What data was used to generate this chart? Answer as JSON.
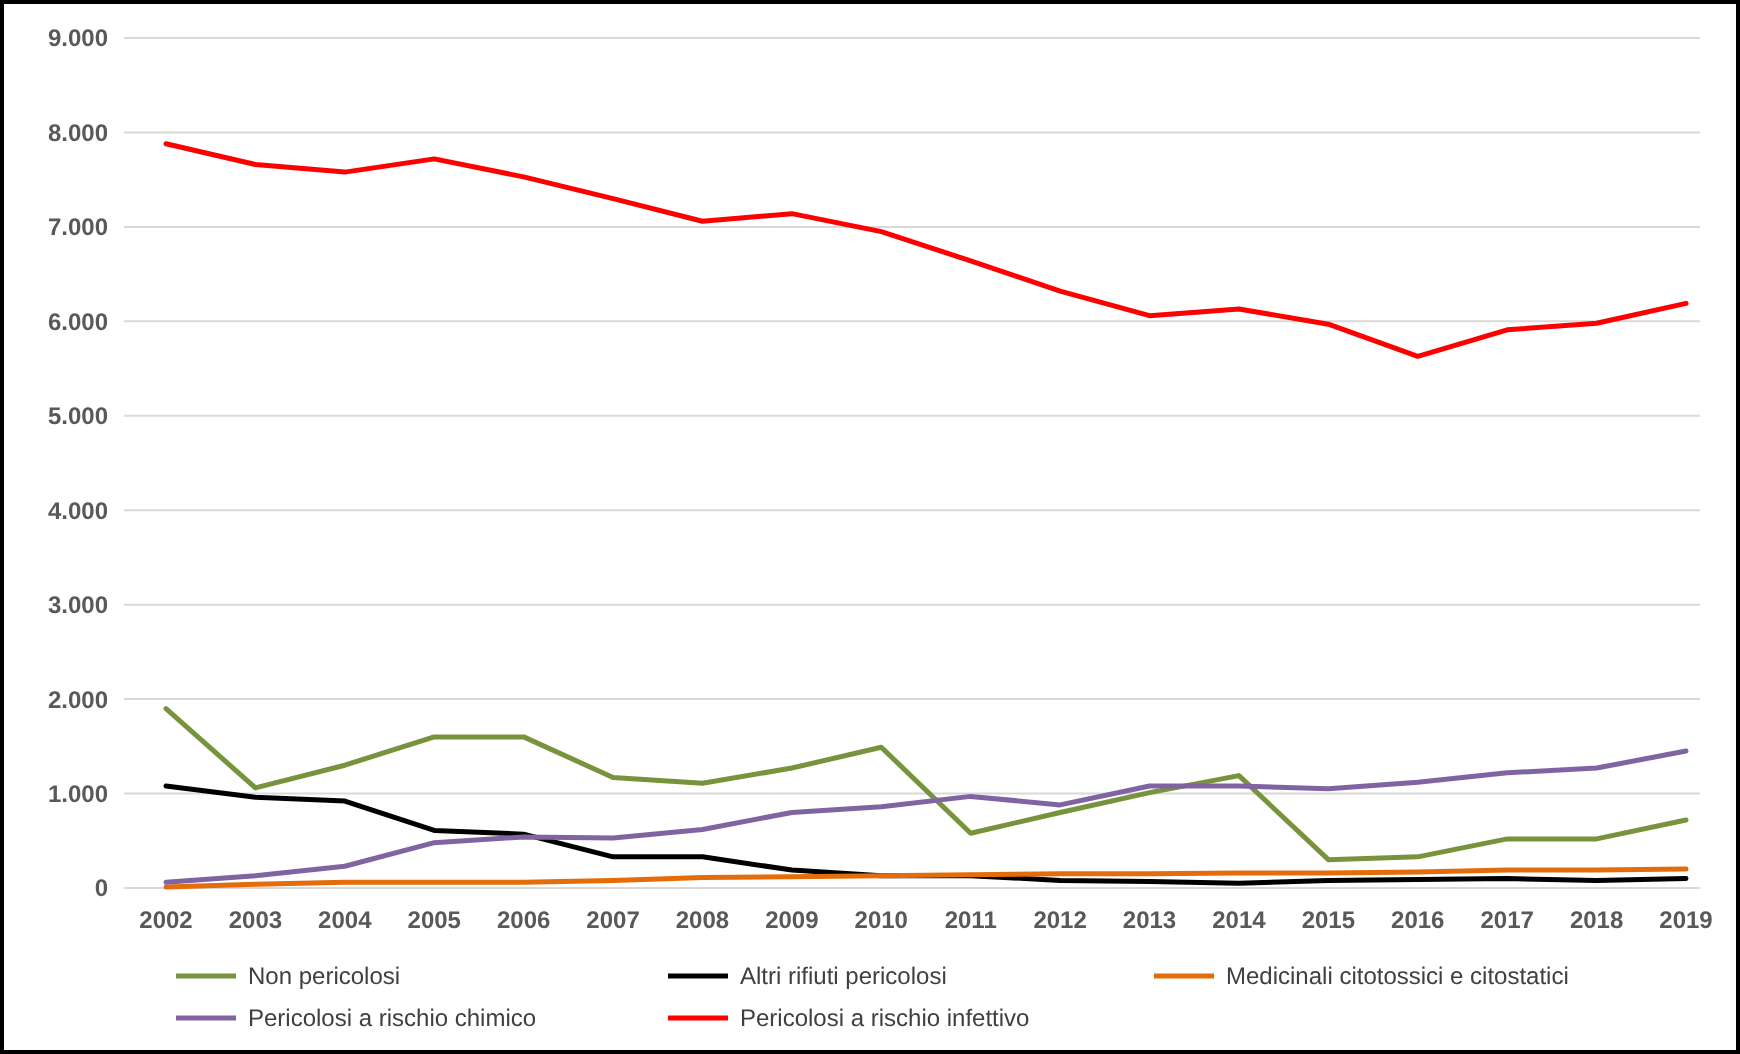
{
  "chart_data": {
    "type": "line",
    "categories": [
      "2002",
      "2003",
      "2004",
      "2005",
      "2006",
      "2007",
      "2008",
      "2009",
      "2010",
      "2011",
      "2012",
      "2013",
      "2014",
      "2015",
      "2016",
      "2017",
      "2018",
      "2019"
    ],
    "series": [
      {
        "name": "Non pericolosi",
        "color": "#77933c",
        "values": [
          1900,
          1060,
          1300,
          1600,
          1600,
          1170,
          1110,
          1270,
          1490,
          580,
          800,
          1010,
          1190,
          300,
          330,
          520,
          520,
          720
        ]
      },
      {
        "name": "Altri rifiuti pericolosi",
        "color": "#000000",
        "values": [
          1080,
          960,
          920,
          610,
          570,
          330,
          330,
          190,
          130,
          130,
          80,
          70,
          50,
          80,
          90,
          100,
          80,
          100
        ]
      },
      {
        "name": "Medicinali citotossici e citostatici",
        "color": "#e46c0a",
        "values": [
          10,
          40,
          60,
          60,
          60,
          80,
          110,
          120,
          130,
          140,
          150,
          150,
          160,
          160,
          170,
          190,
          190,
          200
        ]
      },
      {
        "name": "Pericolosi a rischio chimico",
        "color": "#8064a2",
        "values": [
          60,
          130,
          230,
          480,
          540,
          530,
          620,
          800,
          860,
          970,
          880,
          1080,
          1080,
          1050,
          1120,
          1220,
          1270,
          1450
        ]
      },
      {
        "name": "Pericolosi a rischio infettivo",
        "color": "#ff0000",
        "values": [
          7880,
          7660,
          7580,
          7720,
          7530,
          7300,
          7060,
          7140,
          6950,
          6640,
          6320,
          6060,
          6130,
          5970,
          5630,
          5910,
          5980,
          6190
        ]
      }
    ],
    "ylim": [
      0,
      9000
    ],
    "yticks": [
      {
        "value": 0,
        "label": "0"
      },
      {
        "value": 1000,
        "label": "1.000"
      },
      {
        "value": 2000,
        "label": "2.000"
      },
      {
        "value": 3000,
        "label": "3.000"
      },
      {
        "value": 4000,
        "label": "4.000"
      },
      {
        "value": 5000,
        "label": "5.000"
      },
      {
        "value": 6000,
        "label": "6.000"
      },
      {
        "value": 7000,
        "label": "7.000"
      },
      {
        "value": 8000,
        "label": "8.000"
      },
      {
        "value": 9000,
        "label": "9.000"
      }
    ],
    "grid": "y",
    "legend": "bottom",
    "marker": "none",
    "line_style": "solid"
  }
}
